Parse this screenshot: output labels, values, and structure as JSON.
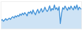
{
  "chart_data": {
    "type": "line",
    "x": [
      1,
      2,
      3,
      4,
      5,
      6,
      7,
      8,
      9,
      10,
      11,
      12,
      13,
      14,
      15,
      16,
      17,
      18,
      19,
      20,
      21,
      22,
      23,
      24,
      25,
      26,
      27,
      28,
      29,
      30,
      31,
      32,
      33,
      34,
      35,
      36,
      37,
      38,
      39,
      40,
      41,
      42,
      43,
      44,
      45,
      46,
      47,
      48,
      49,
      50,
      51,
      52,
      53,
      54,
      55,
      56,
      57,
      58,
      59,
      60,
      61,
      62,
      63,
      64,
      65,
      66,
      67,
      68,
      69
    ],
    "values": [
      30,
      35,
      28,
      33,
      38,
      32,
      36,
      40,
      35,
      42,
      45,
      40,
      48,
      44,
      50,
      46,
      55,
      50,
      58,
      52,
      60,
      55,
      48,
      62,
      58,
      65,
      55,
      70,
      60,
      52,
      64,
      72,
      58,
      66,
      75,
      62,
      68,
      80,
      70,
      64,
      72,
      85,
      66,
      75,
      70,
      88,
      72,
      78,
      68,
      82,
      20,
      55,
      78,
      72,
      84,
      76,
      68,
      80,
      72,
      84,
      76,
      70,
      84,
      74,
      88,
      70,
      80,
      75,
      72
    ],
    "color": "#3d8fd6",
    "xlim": [
      1,
      69
    ],
    "ylim": [
      0,
      100
    ],
    "xticks": [],
    "yticks": [],
    "grid": false,
    "tick_labels": false
  }
}
